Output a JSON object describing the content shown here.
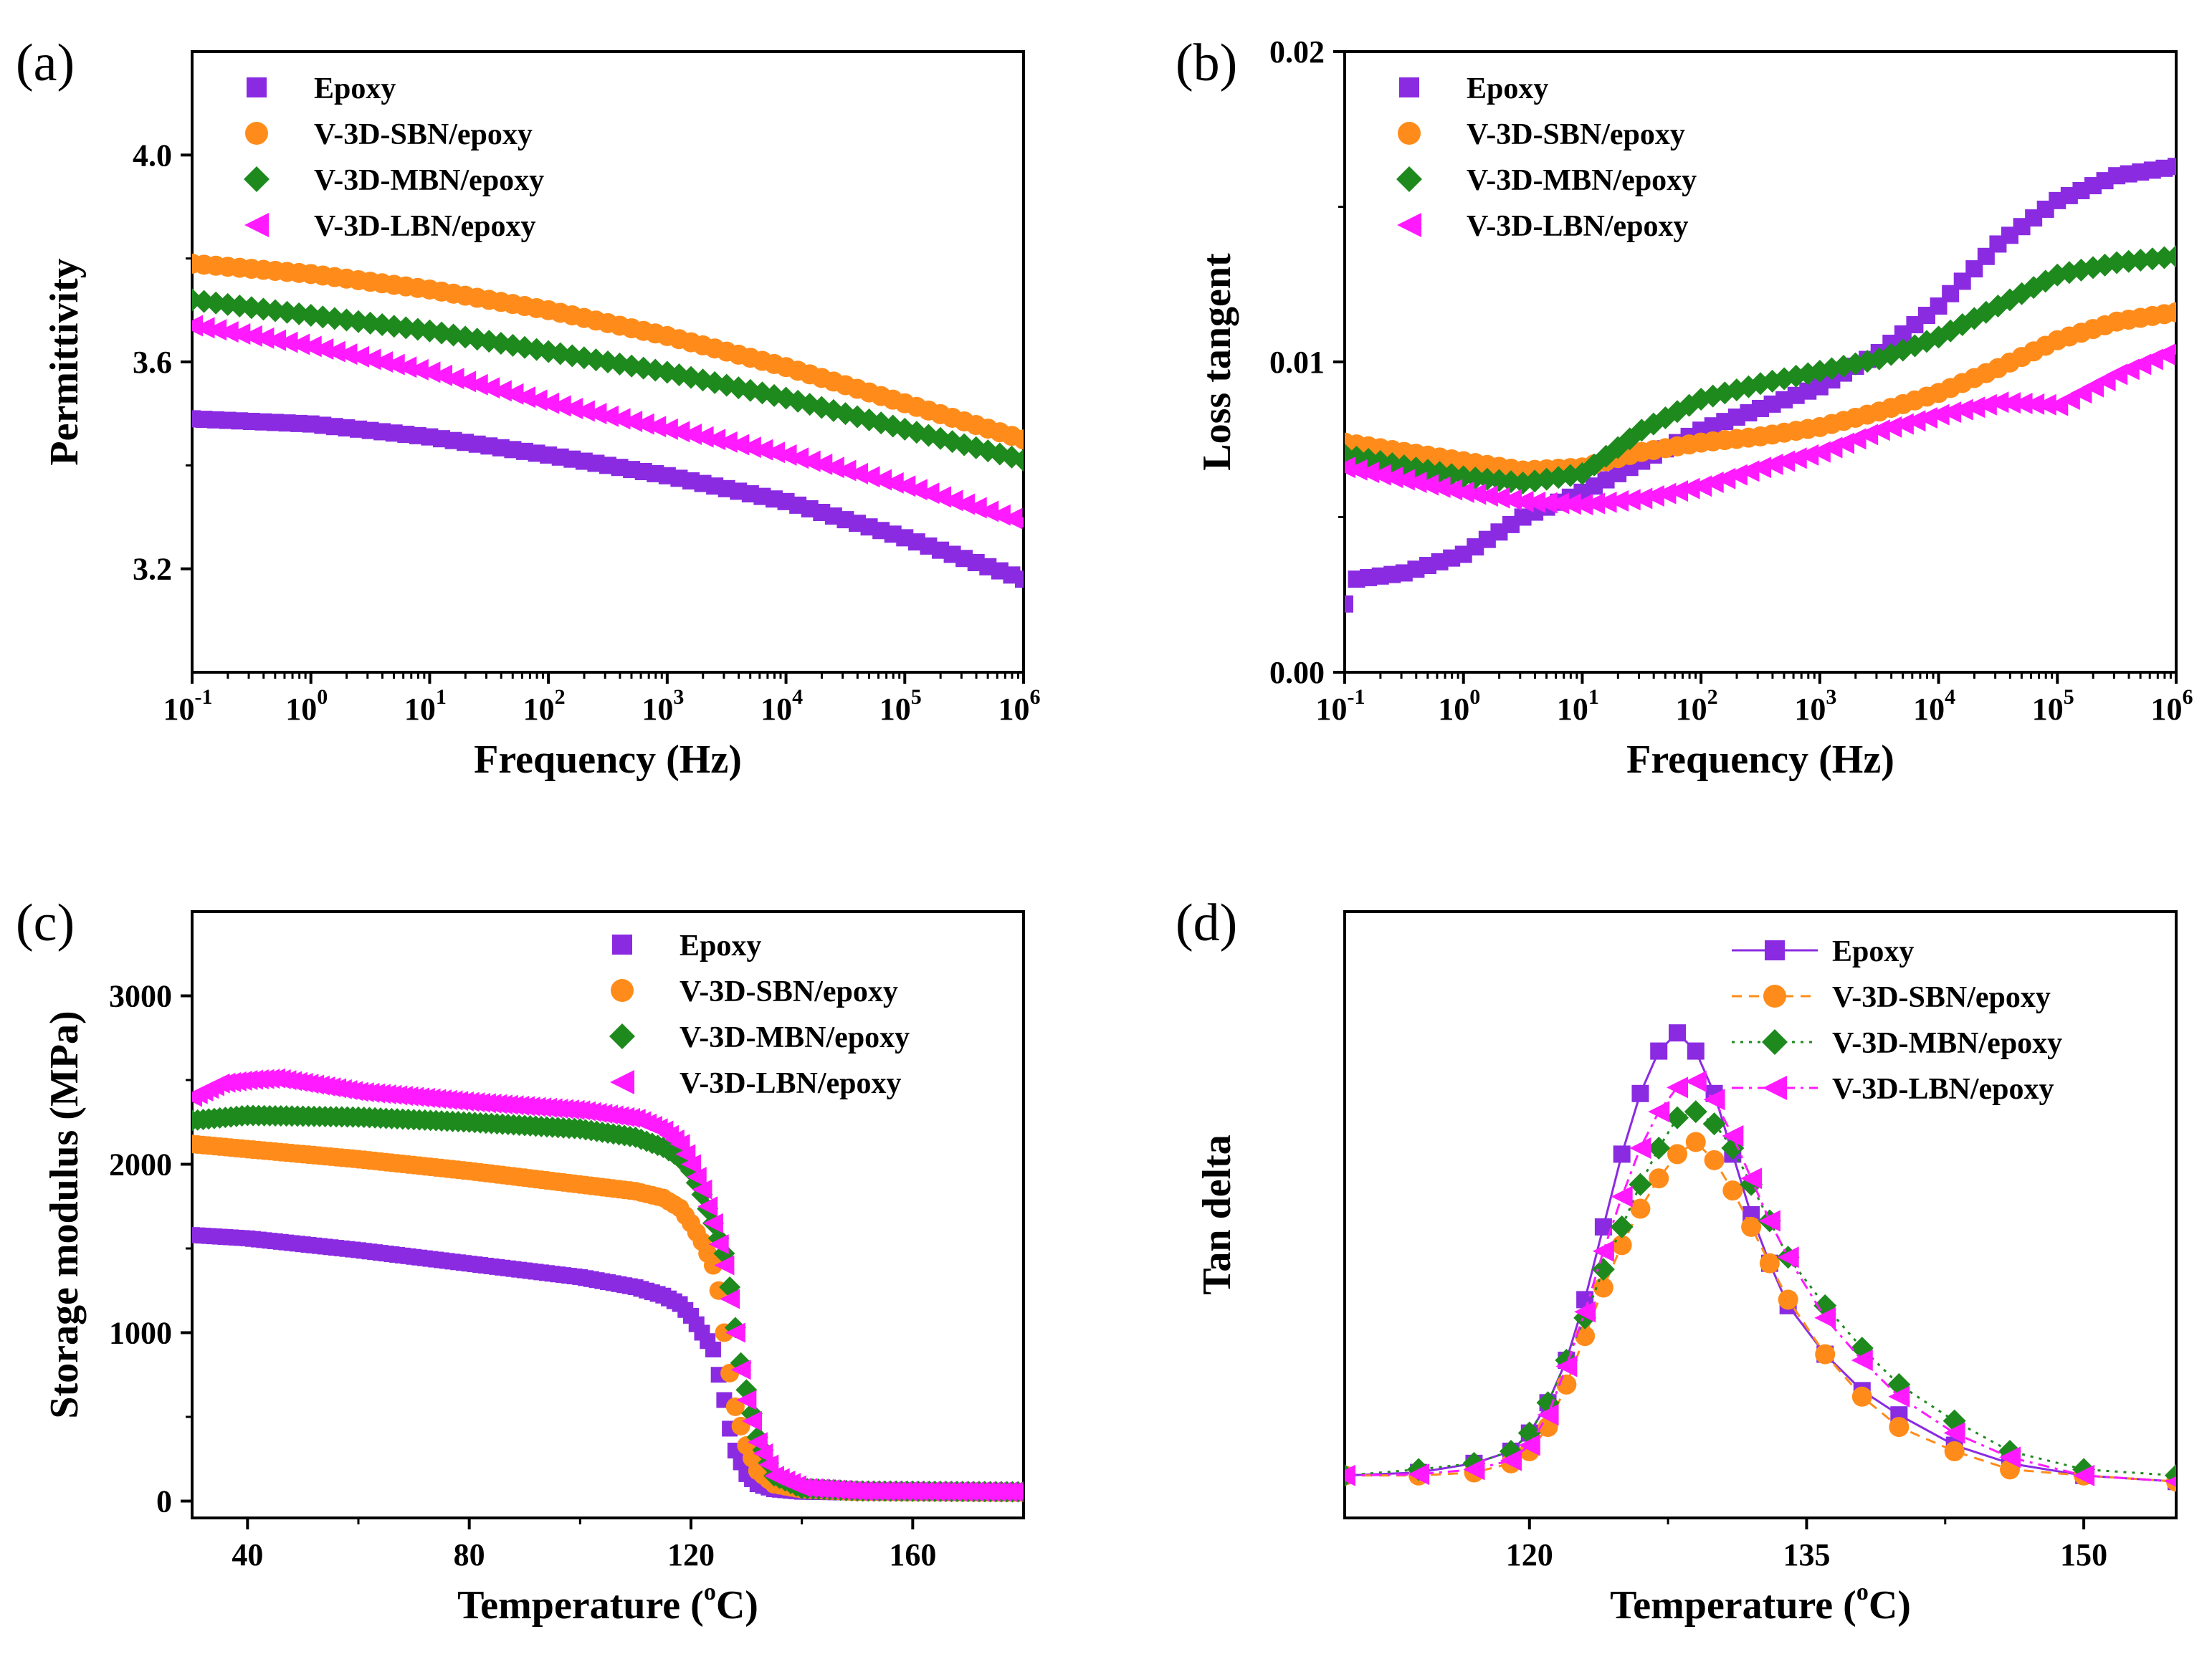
{
  "colors": {
    "Epoxy": "#8a2be2",
    "SBN": "#ff8c1a",
    "MBN": "#1e8a1e",
    "LBN": "#ff1aff"
  },
  "chart_data": [
    {
      "id": "a",
      "panel_label": "(a)",
      "type": "scatter",
      "xlabel": "Frequency (Hz)",
      "ylabel": "Permittivity",
      "xscale": "log",
      "xlim_exp": [
        -1,
        6
      ],
      "xticks": [
        {
          "base": "10",
          "exp": "-1"
        },
        {
          "base": "10",
          "exp": "0"
        },
        {
          "base": "10",
          "exp": "1"
        },
        {
          "base": "10",
          "exp": "2"
        },
        {
          "base": "10",
          "exp": "3"
        },
        {
          "base": "10",
          "exp": "4"
        },
        {
          "base": "10",
          "exp": "5"
        },
        {
          "base": "10",
          "exp": "6"
        }
      ],
      "ylim": [
        3.0,
        4.2
      ],
      "yticks": [
        "3.2",
        "3.6",
        "4.0"
      ],
      "legend_position": "top-left",
      "series": [
        {
          "name": "Epoxy",
          "color": "Epoxy",
          "marker": "square",
          "x_log": [
            -1,
            0,
            1,
            2,
            3,
            4,
            5,
            6
          ],
          "y": [
            3.49,
            3.48,
            3.455,
            3.42,
            3.38,
            3.33,
            3.26,
            3.18
          ]
        },
        {
          "name": "V-3D-SBN/epoxy",
          "color": "SBN",
          "marker": "circle",
          "x_log": [
            -1,
            0,
            1,
            2,
            3,
            4,
            5,
            6
          ],
          "y": [
            3.79,
            3.77,
            3.74,
            3.7,
            3.65,
            3.59,
            3.52,
            3.45
          ]
        },
        {
          "name": "V-3D-MBN/epoxy",
          "color": "MBN",
          "marker": "diamond",
          "x_log": [
            -1,
            0,
            1,
            2,
            3,
            4,
            5,
            6
          ],
          "y": [
            3.72,
            3.69,
            3.66,
            3.62,
            3.58,
            3.53,
            3.47,
            3.41
          ]
        },
        {
          "name": "V-3D-LBN/epoxy",
          "color": "LBN",
          "marker": "triangle-left",
          "x_log": [
            -1,
            0,
            1,
            2,
            3,
            4,
            5,
            6
          ],
          "y": [
            3.67,
            3.63,
            3.58,
            3.52,
            3.47,
            3.42,
            3.36,
            3.29
          ]
        }
      ]
    },
    {
      "id": "b",
      "panel_label": "(b)",
      "type": "scatter",
      "xlabel": "Frequency (Hz)",
      "ylabel": "Loss tangent",
      "xscale": "log",
      "xlim_exp": [
        -1,
        6
      ],
      "xticks": [
        {
          "base": "10",
          "exp": "-1"
        },
        {
          "base": "10",
          "exp": "0"
        },
        {
          "base": "10",
          "exp": "1"
        },
        {
          "base": "10",
          "exp": "2"
        },
        {
          "base": "10",
          "exp": "3"
        },
        {
          "base": "10",
          "exp": "4"
        },
        {
          "base": "10",
          "exp": "5"
        },
        {
          "base": "10",
          "exp": "6"
        }
      ],
      "ylim": [
        0.0,
        0.02
      ],
      "yticks": [
        "0.00",
        "0.01",
        "0.02"
      ],
      "legend_position": "top-left",
      "series": [
        {
          "name": "Epoxy",
          "color": "Epoxy",
          "marker": "square",
          "x_log": [
            -1,
            -0.9,
            -0.5,
            0,
            0.5,
            1,
            1.5,
            2,
            2.5,
            3,
            3.5,
            4,
            4.5,
            5,
            5.5,
            6
          ],
          "y": [
            0.0022,
            0.003,
            0.0032,
            0.0038,
            0.005,
            0.0058,
            0.0068,
            0.0078,
            0.0085,
            0.0092,
            0.0103,
            0.0118,
            0.0138,
            0.0152,
            0.016,
            0.0163
          ]
        },
        {
          "name": "V-3D-SBN/epoxy",
          "color": "SBN",
          "marker": "circle",
          "x_log": [
            -1,
            0,
            0.5,
            1,
            1.5,
            2,
            2.5,
            3,
            3.5,
            4,
            4.5,
            5,
            5.5,
            6
          ],
          "y": [
            0.0074,
            0.0068,
            0.0065,
            0.0066,
            0.0071,
            0.0074,
            0.0076,
            0.0079,
            0.0084,
            0.009,
            0.0098,
            0.0107,
            0.0113,
            0.0116
          ]
        },
        {
          "name": "V-3D-MBN/epoxy",
          "color": "MBN",
          "marker": "diamond",
          "x_log": [
            -1,
            0,
            0.5,
            1,
            1.5,
            2,
            2.5,
            3,
            3.5,
            4,
            4.5,
            5,
            5.5,
            6
          ],
          "y": [
            0.007,
            0.0063,
            0.0061,
            0.0064,
            0.0078,
            0.0088,
            0.0093,
            0.0097,
            0.0101,
            0.0108,
            0.0118,
            0.0128,
            0.0132,
            0.0134
          ]
        },
        {
          "name": "V-3D-LBN/epoxy",
          "color": "LBN",
          "marker": "triangle-left",
          "x_log": [
            -1,
            0,
            0.5,
            1,
            1.5,
            2,
            2.5,
            3,
            3.5,
            4,
            4.5,
            5,
            5.5,
            6
          ],
          "y": [
            0.0066,
            0.0058,
            0.0055,
            0.0054,
            0.0056,
            0.006,
            0.0066,
            0.0071,
            0.0078,
            0.0083,
            0.0087,
            0.0086,
            0.0096,
            0.0104
          ]
        }
      ]
    },
    {
      "id": "c",
      "panel_label": "(c)",
      "type": "scatter",
      "xlabel": "Temperature (°C)",
      "xlabel_main": "Temperature (",
      "xlabel_sup": "o",
      "xlabel_tail": "C)",
      "ylabel": "Storage modulus (MPa)",
      "xlim": [
        30,
        180
      ],
      "xticks": [
        "40",
        "80",
        "120",
        "160"
      ],
      "ylim": [
        -100,
        3500
      ],
      "yticks": [
        "0",
        "1000",
        "2000",
        "3000"
      ],
      "legend_position": "top-right",
      "series": [
        {
          "name": "Epoxy",
          "color": "Epoxy",
          "marker": "square",
          "x": [
            30,
            40,
            60,
            80,
            100,
            110,
            115,
            118,
            120,
            122,
            124,
            125,
            126,
            127,
            128,
            130,
            132,
            135,
            140,
            150,
            180
          ],
          "y": [
            1580,
            1560,
            1490,
            1410,
            1330,
            1270,
            1220,
            1170,
            1100,
            1000,
            900,
            750,
            600,
            430,
            300,
            160,
            100,
            70,
            55,
            50,
            45
          ]
        },
        {
          "name": "V-3D-SBN/epoxy",
          "color": "SBN",
          "marker": "circle",
          "x": [
            30,
            40,
            60,
            80,
            100,
            110,
            115,
            118,
            120,
            122,
            124,
            125,
            126,
            127,
            128,
            130,
            132,
            135,
            140,
            150,
            180
          ],
          "y": [
            2120,
            2090,
            2030,
            1960,
            1880,
            1840,
            1800,
            1740,
            1650,
            1540,
            1400,
            1250,
            1000,
            760,
            560,
            330,
            180,
            100,
            70,
            55,
            50
          ]
        },
        {
          "name": "V-3D-MBN/epoxy",
          "color": "MBN",
          "marker": "diamond",
          "x": [
            30,
            40,
            60,
            80,
            100,
            110,
            115,
            118,
            120,
            122,
            124,
            126,
            127,
            128,
            129,
            130,
            132,
            135,
            140,
            150,
            180
          ],
          "y": [
            2260,
            2290,
            2280,
            2250,
            2210,
            2160,
            2100,
            2040,
            1960,
            1820,
            1650,
            1470,
            1270,
            1030,
            820,
            660,
            380,
            150,
            75,
            60,
            55
          ]
        },
        {
          "name": "V-3D-LBN/epoxy",
          "color": "LBN",
          "marker": "triangle-left",
          "x": [
            30,
            35,
            40,
            45,
            60,
            80,
            100,
            110,
            115,
            118,
            120,
            122,
            124,
            126,
            127,
            128,
            129,
            130,
            132,
            135,
            140,
            150,
            180
          ],
          "y": [
            2400,
            2480,
            2500,
            2510,
            2430,
            2370,
            2320,
            2270,
            2200,
            2120,
            2000,
            1850,
            1650,
            1400,
            1200,
            1000,
            780,
            600,
            350,
            150,
            80,
            60,
            55
          ]
        }
      ]
    },
    {
      "id": "d",
      "panel_label": "(d)",
      "type": "line",
      "xlabel": "Temperature (°C)",
      "xlabel_main": "Temperature (",
      "xlabel_sup": "o",
      "xlabel_tail": "C)",
      "ylabel": "Tan delta",
      "xlim": [
        110,
        155
      ],
      "xticks": [
        "120",
        "135",
        "150"
      ],
      "ylim": [
        0,
        1
      ],
      "yticks": [],
      "legend_position": "top-right",
      "series": [
        {
          "name": "Epoxy",
          "color": "Epoxy",
          "marker": "square",
          "line": "solid",
          "x": [
            110,
            114,
            117,
            119,
            120,
            121,
            122,
            123,
            124,
            125,
            126,
            127,
            128,
            129,
            130,
            131,
            132,
            133,
            134,
            136,
            138,
            140,
            143,
            146,
            150,
            155
          ],
          "y": [
            0.07,
            0.075,
            0.09,
            0.11,
            0.14,
            0.19,
            0.26,
            0.36,
            0.48,
            0.6,
            0.7,
            0.77,
            0.8,
            0.77,
            0.7,
            0.6,
            0.5,
            0.42,
            0.35,
            0.27,
            0.21,
            0.17,
            0.12,
            0.09,
            0.07,
            0.06
          ]
        },
        {
          "name": "V-3D-SBN/epoxy",
          "color": "SBN",
          "marker": "circle",
          "line": "dash",
          "x": [
            110,
            114,
            117,
            119,
            120,
            121,
            122,
            123,
            124,
            125,
            126,
            127,
            128,
            129,
            130,
            131,
            132,
            133,
            134,
            136,
            138,
            140,
            143,
            146,
            150,
            155
          ],
          "y": [
            0.07,
            0.07,
            0.075,
            0.09,
            0.11,
            0.15,
            0.22,
            0.3,
            0.38,
            0.45,
            0.51,
            0.56,
            0.6,
            0.62,
            0.59,
            0.54,
            0.48,
            0.42,
            0.36,
            0.27,
            0.2,
            0.15,
            0.11,
            0.08,
            0.07,
            0.06
          ]
        },
        {
          "name": "V-3D-MBN/epoxy",
          "color": "MBN",
          "marker": "diamond",
          "line": "dot",
          "x": [
            110,
            114,
            117,
            119,
            120,
            121,
            122,
            123,
            124,
            125,
            126,
            127,
            128,
            129,
            130,
            131,
            132,
            133,
            134,
            136,
            138,
            140,
            143,
            146,
            150,
            155
          ],
          "y": [
            0.07,
            0.08,
            0.09,
            0.11,
            0.14,
            0.19,
            0.26,
            0.33,
            0.41,
            0.48,
            0.55,
            0.61,
            0.66,
            0.67,
            0.65,
            0.61,
            0.55,
            0.49,
            0.43,
            0.35,
            0.28,
            0.22,
            0.16,
            0.11,
            0.08,
            0.07
          ]
        },
        {
          "name": "V-3D-LBN/epoxy",
          "color": "LBN",
          "marker": "triangle-left",
          "line": "dashdot",
          "x": [
            110,
            114,
            117,
            119,
            120,
            121,
            122,
            123,
            124,
            125,
            126,
            127,
            128,
            129,
            130,
            131,
            132,
            133,
            134,
            136,
            138,
            140,
            143,
            146,
            150,
            155
          ],
          "y": [
            0.07,
            0.072,
            0.08,
            0.095,
            0.12,
            0.17,
            0.25,
            0.34,
            0.44,
            0.53,
            0.61,
            0.67,
            0.71,
            0.72,
            0.69,
            0.63,
            0.56,
            0.49,
            0.43,
            0.33,
            0.26,
            0.2,
            0.14,
            0.1,
            0.07,
            0.06
          ]
        }
      ]
    }
  ]
}
